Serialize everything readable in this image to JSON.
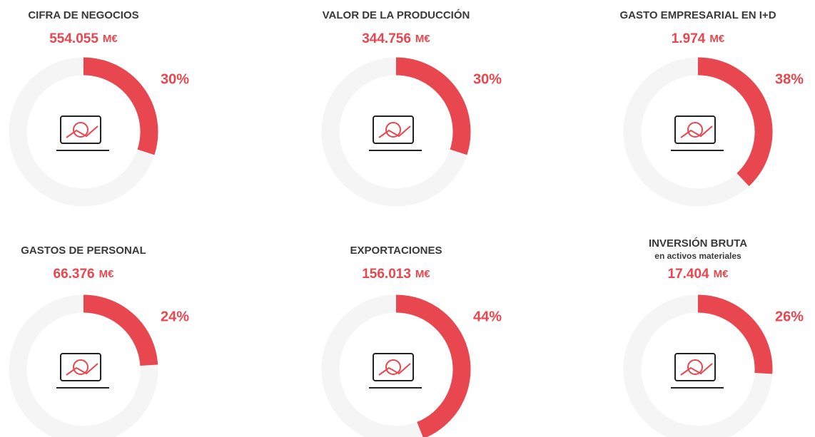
{
  "chart_data": [
    {
      "type": "donut",
      "title": "CIFRA DE NEGOCIOS",
      "amount": "554.055",
      "unit": "M€",
      "values": [
        30
      ],
      "value_labels": [
        "30%"
      ],
      "color": "#e8474f"
    },
    {
      "type": "donut",
      "title": "VALOR DE LA PRODUCCIÓN",
      "amount": "344.756",
      "unit": "M€",
      "values": [
        30
      ],
      "value_labels": [
        "30%"
      ],
      "color": "#e8474f"
    },
    {
      "type": "donut",
      "title": "GASTO EMPRESARIAL EN I+D",
      "amount": "1.974",
      "unit": "M€",
      "values": [
        38
      ],
      "value_labels": [
        "38%"
      ],
      "color": "#e8474f"
    },
    {
      "type": "donut",
      "title": "GASTOS DE PERSONAL",
      "amount": "66.376",
      "unit": "M€",
      "values": [
        24
      ],
      "value_labels": [
        "24%"
      ],
      "color": "#e8474f"
    },
    {
      "type": "donut",
      "title": "EXPORTACIONES",
      "amount": "156.013",
      "unit": "M€",
      "values": [
        44
      ],
      "value_labels": [
        "44%"
      ],
      "color": "#e8474f"
    },
    {
      "type": "donut",
      "title": "INVERSIÓN BRUTA",
      "subtitle": "en activos materiales",
      "amount": "17.404",
      "unit": "M€",
      "values": [
        26
      ],
      "value_labels": [
        "26%"
      ],
      "color": "#e8474f"
    }
  ]
}
